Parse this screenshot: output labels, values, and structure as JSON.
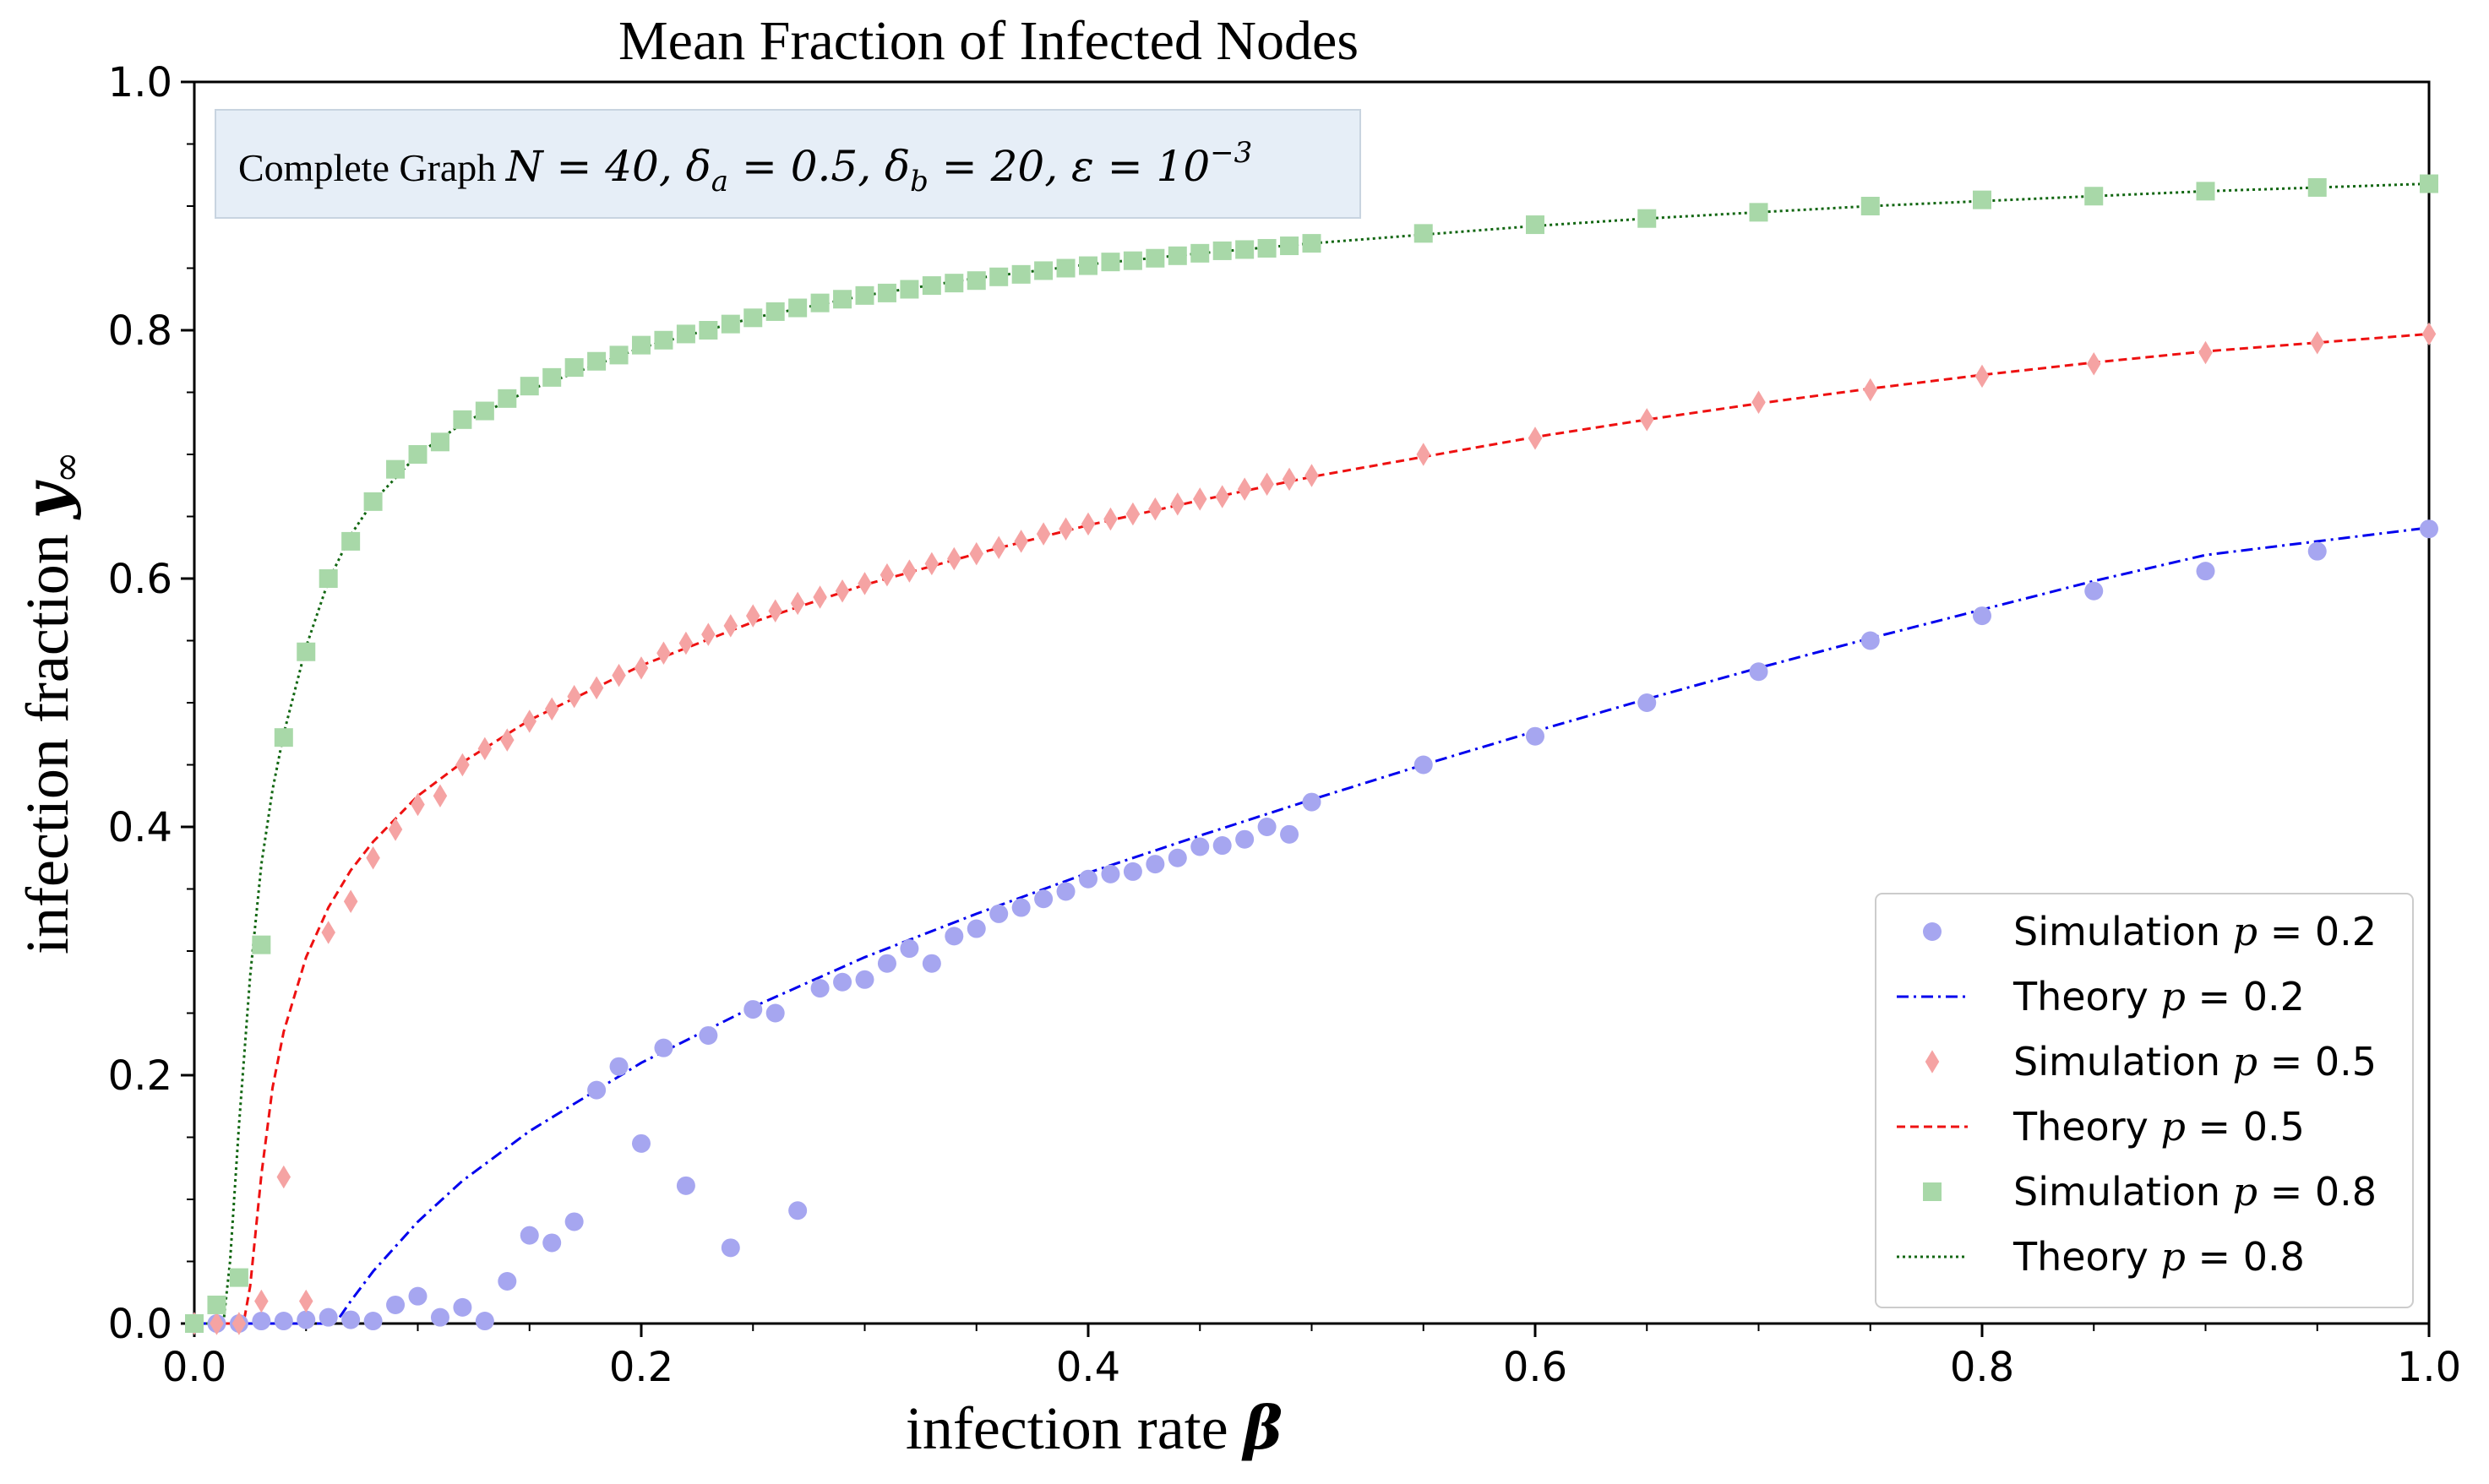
{
  "chart_data": {
    "type": "scatter",
    "title": "Mean Fraction of Infected Nodes",
    "xlabel_text": "infection rate",
    "xlabel_symbol": "β",
    "ylabel_text": "infection fraction",
    "ylabel_symbol": "y",
    "ylabel_sub": "∞",
    "xlim": [
      0,
      1
    ],
    "ylim": [
      0,
      1
    ],
    "xticks": [
      "0.0",
      "0.2",
      "0.4",
      "0.6",
      "0.8",
      "1.0"
    ],
    "yticks": [
      "0.0",
      "0.2",
      "0.4",
      "0.6",
      "0.8",
      "1.0"
    ],
    "annotation": {
      "prefix": "Complete Graph ",
      "math": "N = 40, δ",
      "sub_a": "a",
      "mid1": " = 0.5, δ",
      "sub_b": "b",
      "mid2": " = 20, ε = 10",
      "sup": "−3"
    },
    "legend_position": "lower-right",
    "colors": {
      "sim_02": "#a6a6f0",
      "theory_02": "#0000ee",
      "sim_05": "#f5a3a3",
      "theory_05": "#ee1111",
      "sim_08": "#a8d8a8",
      "theory_08": "#116611",
      "annotation_bg": "#e6eef7",
      "annotation_border": "#c8d4e0"
    },
    "series": [
      {
        "name": "Simulation p = 0.2",
        "legend_label": "Simulation",
        "legend_p": "p",
        "legend_value": " = 0.2",
        "kind": "scatter",
        "marker": "circle",
        "x": [
          0.0,
          0.01,
          0.02,
          0.03,
          0.04,
          0.05,
          0.06,
          0.07,
          0.08,
          0.09,
          0.1,
          0.11,
          0.12,
          0.13,
          0.14,
          0.15,
          0.16,
          0.17,
          0.18,
          0.19,
          0.2,
          0.21,
          0.22,
          0.23,
          0.24,
          0.25,
          0.26,
          0.27,
          0.28,
          0.29,
          0.3,
          0.31,
          0.32,
          0.33,
          0.34,
          0.35,
          0.36,
          0.37,
          0.38,
          0.39,
          0.4,
          0.41,
          0.42,
          0.43,
          0.44,
          0.45,
          0.46,
          0.47,
          0.48,
          0.49,
          0.5,
          0.55,
          0.6,
          0.65,
          0.7,
          0.75,
          0.8,
          0.85,
          0.9,
          0.95,
          1.0
        ],
        "y": [
          0.0,
          0.0,
          0.0,
          0.002,
          0.002,
          0.003,
          0.005,
          0.003,
          0.002,
          0.015,
          0.022,
          0.005,
          0.013,
          0.002,
          0.034,
          0.071,
          0.065,
          0.082,
          0.188,
          0.207,
          0.145,
          0.222,
          0.111,
          0.232,
          0.061,
          0.253,
          0.25,
          0.091,
          0.27,
          0.275,
          0.277,
          0.29,
          0.302,
          0.29,
          0.312,
          0.318,
          0.33,
          0.335,
          0.342,
          0.348,
          0.358,
          0.362,
          0.364,
          0.37,
          0.375,
          0.384,
          0.385,
          0.39,
          0.4,
          0.394,
          0.42,
          0.45,
          0.473,
          0.5,
          0.525,
          0.55,
          0.57,
          0.59,
          0.606,
          0.622,
          0.64
        ]
      },
      {
        "name": "Theory p = 0.2",
        "legend_label": "Theory",
        "legend_p": "p",
        "legend_value": " = 0.2",
        "kind": "line",
        "style": "dashdot",
        "x": [
          0.0,
          0.06,
          0.065,
          0.07,
          0.08,
          0.1,
          0.12,
          0.15,
          0.2,
          0.25,
          0.3,
          0.35,
          0.4,
          0.45,
          0.5,
          0.55,
          0.6,
          0.65,
          0.7,
          0.75,
          0.8,
          0.85,
          0.9,
          0.95,
          1.0
        ],
        "y": [
          0.0,
          0.0,
          0.005,
          0.018,
          0.042,
          0.082,
          0.115,
          0.155,
          0.21,
          0.255,
          0.295,
          0.33,
          0.363,
          0.393,
          0.422,
          0.45,
          0.477,
          0.503,
          0.528,
          0.552,
          0.575,
          0.598,
          0.619,
          0.63,
          0.641
        ]
      },
      {
        "name": "Simulation p = 0.5",
        "legend_label": "Simulation",
        "legend_p": "p",
        "legend_value": " = 0.5",
        "kind": "scatter",
        "marker": "diamond",
        "x": [
          0.0,
          0.01,
          0.02,
          0.03,
          0.04,
          0.05,
          0.06,
          0.07,
          0.08,
          0.09,
          0.1,
          0.11,
          0.12,
          0.13,
          0.14,
          0.15,
          0.16,
          0.17,
          0.18,
          0.19,
          0.2,
          0.21,
          0.22,
          0.23,
          0.24,
          0.25,
          0.26,
          0.27,
          0.28,
          0.29,
          0.3,
          0.31,
          0.32,
          0.33,
          0.34,
          0.35,
          0.36,
          0.37,
          0.38,
          0.39,
          0.4,
          0.41,
          0.42,
          0.43,
          0.44,
          0.45,
          0.46,
          0.47,
          0.48,
          0.49,
          0.5,
          0.55,
          0.6,
          0.65,
          0.7,
          0.75,
          0.8,
          0.85,
          0.9,
          0.95,
          1.0
        ],
        "y": [
          0.0,
          0.0,
          0.0,
          0.018,
          0.118,
          0.018,
          0.315,
          0.34,
          0.375,
          0.398,
          0.418,
          0.425,
          0.45,
          0.463,
          0.47,
          0.485,
          0.495,
          0.505,
          0.512,
          0.522,
          0.528,
          0.54,
          0.548,
          0.555,
          0.562,
          0.57,
          0.574,
          0.58,
          0.585,
          0.59,
          0.596,
          0.603,
          0.606,
          0.612,
          0.616,
          0.62,
          0.625,
          0.63,
          0.636,
          0.64,
          0.644,
          0.648,
          0.652,
          0.656,
          0.66,
          0.664,
          0.666,
          0.672,
          0.676,
          0.68,
          0.683,
          0.7,
          0.713,
          0.728,
          0.742,
          0.752,
          0.763,
          0.773,
          0.782,
          0.79,
          0.797
        ]
      },
      {
        "name": "Theory p = 0.5",
        "legend_label": "Theory",
        "legend_p": "p",
        "legend_value": " = 0.5",
        "kind": "line",
        "style": "dashed",
        "x": [
          0.0,
          0.022,
          0.025,
          0.03,
          0.035,
          0.04,
          0.05,
          0.06,
          0.07,
          0.08,
          0.1,
          0.12,
          0.15,
          0.2,
          0.25,
          0.3,
          0.35,
          0.4,
          0.45,
          0.5,
          0.55,
          0.6,
          0.65,
          0.7,
          0.75,
          0.8,
          0.85,
          0.9,
          0.95,
          1.0
        ],
        "y": [
          0.0,
          0.0,
          0.03,
          0.12,
          0.19,
          0.235,
          0.295,
          0.335,
          0.365,
          0.388,
          0.425,
          0.452,
          0.486,
          0.53,
          0.565,
          0.595,
          0.62,
          0.643,
          0.663,
          0.682,
          0.698,
          0.714,
          0.728,
          0.741,
          0.753,
          0.764,
          0.774,
          0.783,
          0.79,
          0.797
        ]
      },
      {
        "name": "Simulation p = 0.8",
        "legend_label": "Simulation",
        "legend_p": "p",
        "legend_value": " = 0.8",
        "kind": "scatter",
        "marker": "square",
        "x": [
          0.0,
          0.01,
          0.02,
          0.03,
          0.04,
          0.05,
          0.06,
          0.07,
          0.08,
          0.09,
          0.1,
          0.11,
          0.12,
          0.13,
          0.14,
          0.15,
          0.16,
          0.17,
          0.18,
          0.19,
          0.2,
          0.21,
          0.22,
          0.23,
          0.24,
          0.25,
          0.26,
          0.27,
          0.28,
          0.29,
          0.3,
          0.31,
          0.32,
          0.33,
          0.34,
          0.35,
          0.36,
          0.37,
          0.38,
          0.39,
          0.4,
          0.41,
          0.42,
          0.43,
          0.44,
          0.45,
          0.46,
          0.47,
          0.48,
          0.49,
          0.5,
          0.55,
          0.6,
          0.65,
          0.7,
          0.75,
          0.8,
          0.85,
          0.9,
          0.95,
          1.0
        ],
        "y": [
          0.0,
          0.015,
          0.037,
          0.305,
          0.472,
          0.541,
          0.6,
          0.63,
          0.662,
          0.688,
          0.7,
          0.71,
          0.728,
          0.735,
          0.745,
          0.755,
          0.762,
          0.77,
          0.775,
          0.78,
          0.788,
          0.792,
          0.797,
          0.8,
          0.805,
          0.81,
          0.815,
          0.818,
          0.822,
          0.825,
          0.828,
          0.83,
          0.833,
          0.836,
          0.838,
          0.84,
          0.843,
          0.845,
          0.848,
          0.85,
          0.852,
          0.855,
          0.856,
          0.858,
          0.86,
          0.862,
          0.864,
          0.865,
          0.866,
          0.868,
          0.87,
          0.878,
          0.885,
          0.89,
          0.895,
          0.9,
          0.905,
          0.908,
          0.912,
          0.915,
          0.918
        ]
      },
      {
        "name": "Theory p = 0.8",
        "legend_label": "Theory",
        "legend_p": "p",
        "legend_value": " = 0.8",
        "kind": "line",
        "style": "dotted",
        "x": [
          0.0,
          0.013,
          0.016,
          0.02,
          0.025,
          0.03,
          0.035,
          0.04,
          0.05,
          0.06,
          0.07,
          0.08,
          0.1,
          0.12,
          0.15,
          0.2,
          0.25,
          0.3,
          0.35,
          0.4,
          0.45,
          0.5,
          0.55,
          0.6,
          0.65,
          0.7,
          0.75,
          0.8,
          0.85,
          0.9,
          0.95,
          1.0
        ],
        "y": [
          0.0,
          0.0,
          0.05,
          0.16,
          0.28,
          0.37,
          0.43,
          0.475,
          0.545,
          0.598,
          0.635,
          0.662,
          0.7,
          0.725,
          0.752,
          0.786,
          0.81,
          0.828,
          0.842,
          0.853,
          0.862,
          0.87,
          0.877,
          0.884,
          0.89,
          0.895,
          0.9,
          0.904,
          0.908,
          0.912,
          0.915,
          0.918
        ]
      }
    ]
  }
}
